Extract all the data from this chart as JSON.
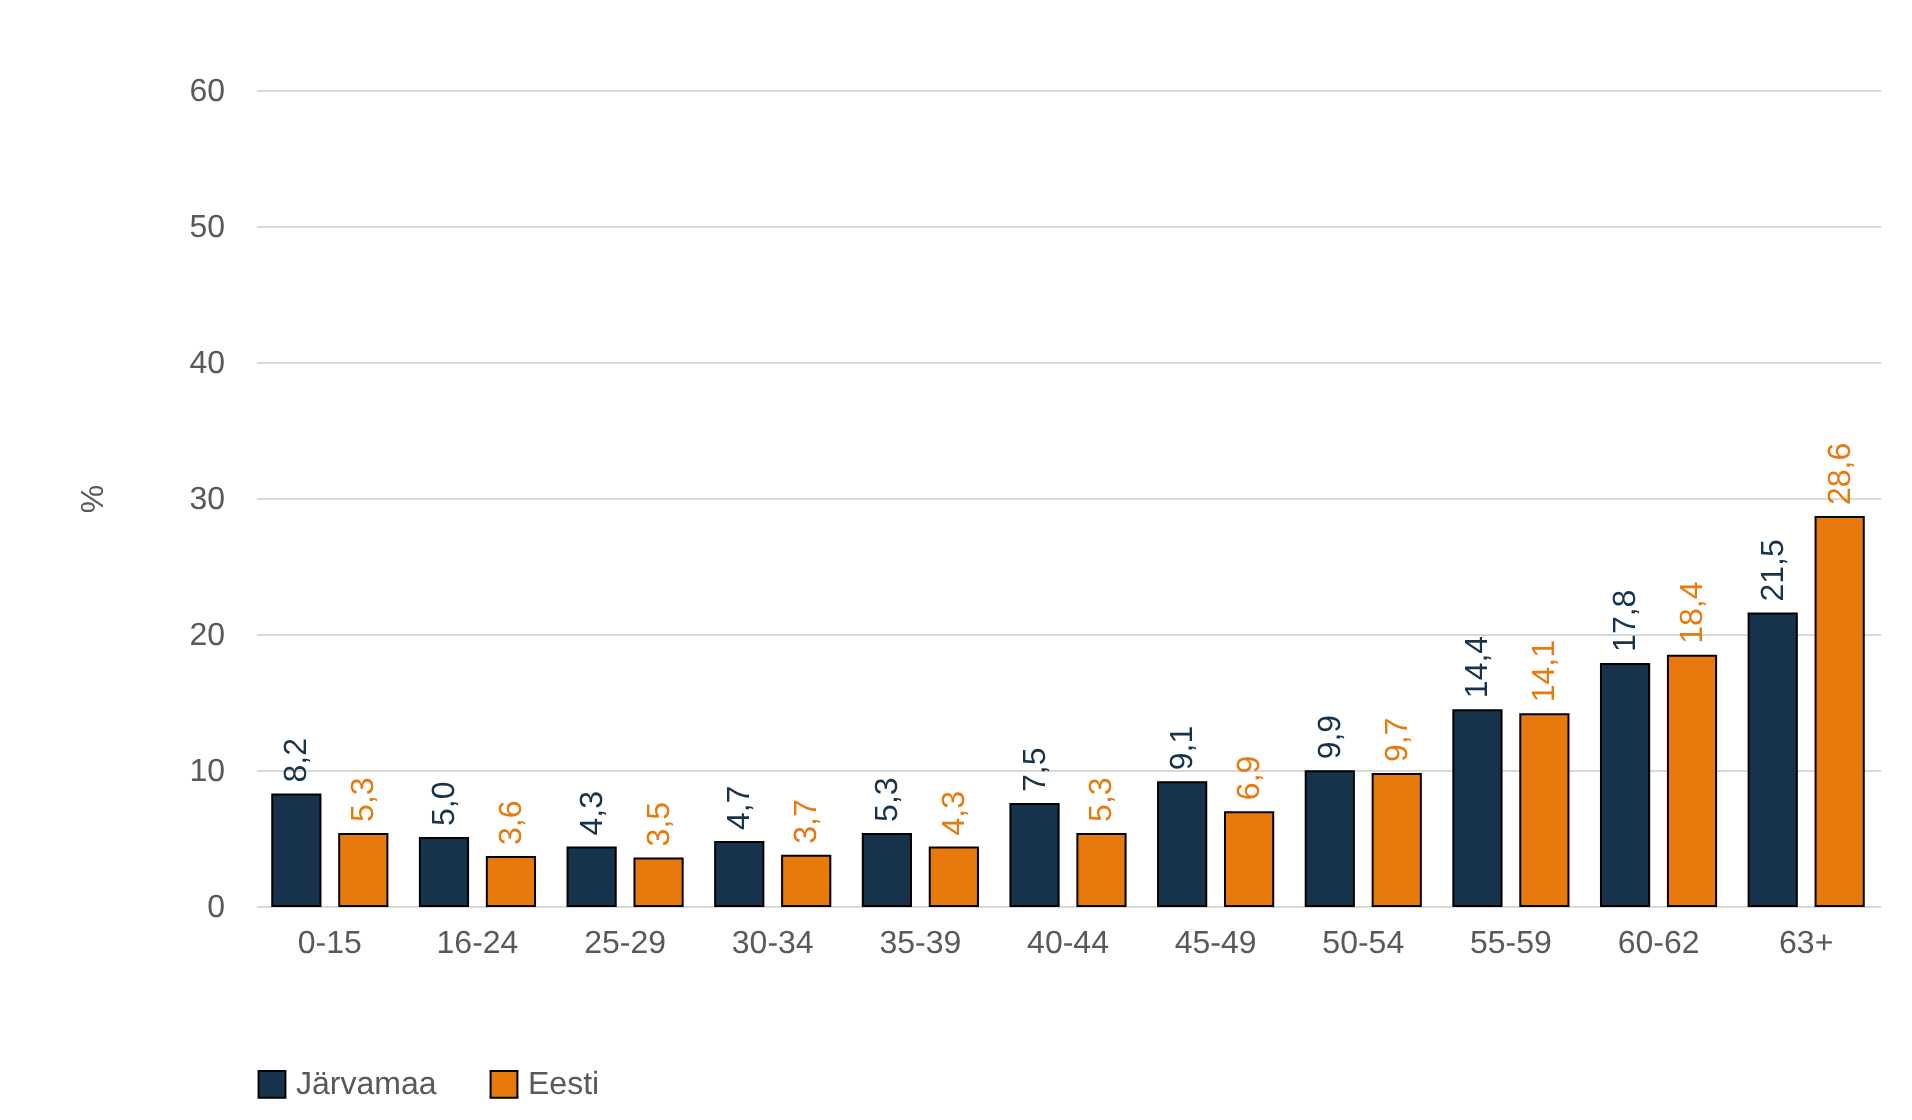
{
  "chart_data": {
    "type": "bar",
    "ylabel": "%",
    "categories": [
      "0-15",
      "16-24",
      "25-29",
      "30-34",
      "35-39",
      "40-44",
      "45-49",
      "50-54",
      "55-59",
      "60-62",
      "63+"
    ],
    "series": [
      {
        "name": "Järvamaa",
        "color": "#17334b",
        "values": [
          8.2,
          5.0,
          4.3,
          4.7,
          5.3,
          7.5,
          9.1,
          9.9,
          14.4,
          17.8,
          21.5
        ],
        "value_labels": [
          "8,2",
          "5,0",
          "4,3",
          "4,7",
          "5,3",
          "7,5",
          "9,1",
          "9,9",
          "14,4",
          "17,8",
          "21,5"
        ]
      },
      {
        "name": "Eesti",
        "color": "#e8790c",
        "values": [
          5.3,
          3.6,
          3.5,
          3.7,
          4.3,
          5.3,
          6.9,
          9.7,
          14.1,
          18.4,
          28.6
        ],
        "value_labels": [
          "5,3",
          "3,6",
          "3,5",
          "3,7",
          "4,3",
          "5,3",
          "6,9",
          "9,7",
          "14,1",
          "18,4",
          "28,6"
        ]
      }
    ],
    "ylim": [
      0,
      60
    ],
    "yticks": [
      0,
      10,
      20,
      30,
      40,
      50,
      60
    ],
    "grid": "y",
    "legend": "bottom"
  }
}
